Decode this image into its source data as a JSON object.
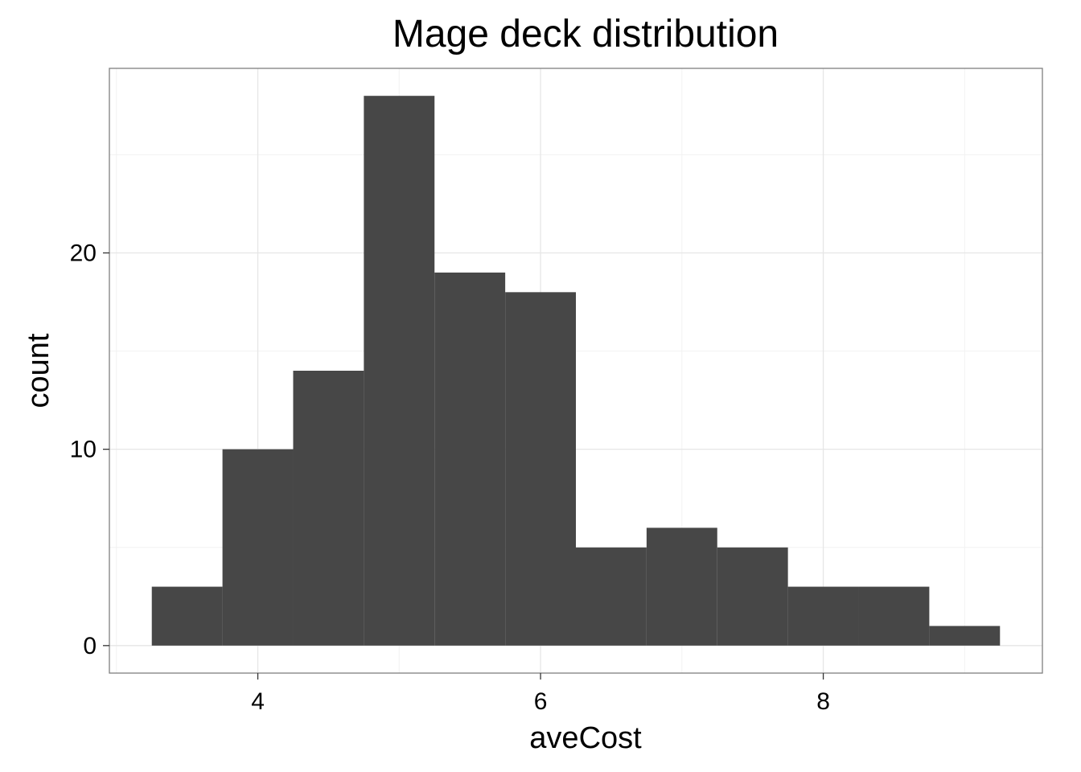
{
  "chart_data": {
    "type": "histogram",
    "title": "Mage deck distribution",
    "xlabel": "aveCost",
    "ylabel": "count",
    "bin_width": 0.5,
    "bins": [
      {
        "x0": 3.25,
        "x1": 3.75,
        "count": 3
      },
      {
        "x0": 3.75,
        "x1": 4.25,
        "count": 10
      },
      {
        "x0": 4.25,
        "x1": 4.75,
        "count": 14
      },
      {
        "x0": 4.75,
        "x1": 5.25,
        "count": 28
      },
      {
        "x0": 5.25,
        "x1": 5.75,
        "count": 19
      },
      {
        "x0": 5.75,
        "x1": 6.25,
        "count": 18
      },
      {
        "x0": 6.25,
        "x1": 6.75,
        "count": 5
      },
      {
        "x0": 6.75,
        "x1": 7.25,
        "count": 6
      },
      {
        "x0": 7.25,
        "x1": 7.75,
        "count": 5
      },
      {
        "x0": 7.75,
        "x1": 8.25,
        "count": 3
      },
      {
        "x0": 8.25,
        "x1": 8.75,
        "count": 3
      },
      {
        "x0": 8.75,
        "x1": 9.25,
        "count": 1
      }
    ],
    "xlim": [
      2.95,
      9.55
    ],
    "ylim": [
      -1.4,
      29.4
    ],
    "x_ticks": [
      4,
      6,
      8
    ],
    "x_tick_labels": [
      "4",
      "6",
      "8"
    ],
    "y_ticks": [
      0,
      10,
      20
    ],
    "y_tick_labels": [
      "0",
      "10",
      "20"
    ],
    "x_minor_gridlines": [
      3,
      5,
      7,
      9
    ],
    "y_minor_gridlines": [
      5,
      15,
      25
    ],
    "grid": true,
    "bar_color": "#474747",
    "panel_border_color": "#7f7f7f",
    "major_grid_color": "#e6e6e6",
    "minor_grid_color": "#f2f2f2",
    "theme": "bw"
  }
}
